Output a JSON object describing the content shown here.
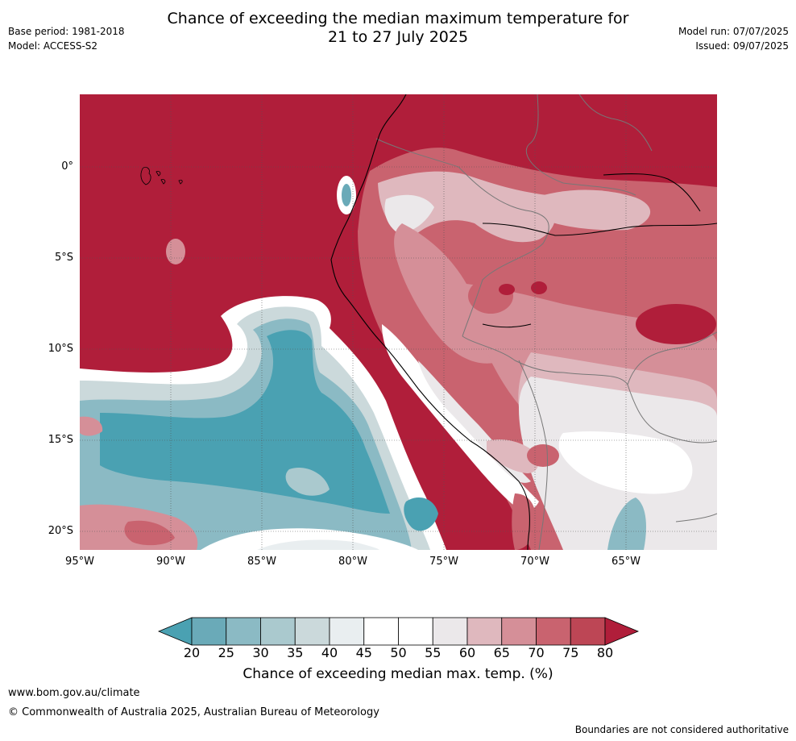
{
  "title_line1": "Chance of exceeding the median maximum temperature for",
  "title_line2": "21 to 27 July 2025",
  "base_period": "Base period: 1981-2018",
  "model": "Model: ACCESS-S2",
  "model_run": "Model run: 07/07/2025",
  "issued": "Issued: 09/07/2025",
  "lat_labels": [
    "0°",
    "5°S",
    "10°S",
    "15°S",
    "20°S"
  ],
  "lon_labels": [
    "95°W",
    "90°W",
    "85°W",
    "80°W",
    "75°W",
    "70°W",
    "65°W"
  ],
  "colorbar": {
    "ticks": [
      "20",
      "25",
      "30",
      "35",
      "40",
      "45",
      "50",
      "55",
      "60",
      "65",
      "70",
      "75",
      "80"
    ],
    "colors": [
      "#4aa1b2",
      "#6aaab8",
      "#8bbac4",
      "#aac9ce",
      "#cbd9db",
      "#e9eef0",
      "#ffffff",
      "#ffffff",
      "#ebe8ea",
      "#dfb8be",
      "#d58f98",
      "#c9636f",
      "#bd4655",
      "#b01e3a"
    ],
    "label": "Chance of exceeding median max. temp. (%)"
  },
  "website": "www.bom.gov.au/climate",
  "copyright": "© Commonwealth of Australia 2025, Australian Bureau of Meteorology",
  "disclaimer": "Boundaries are not considered authoritative"
}
